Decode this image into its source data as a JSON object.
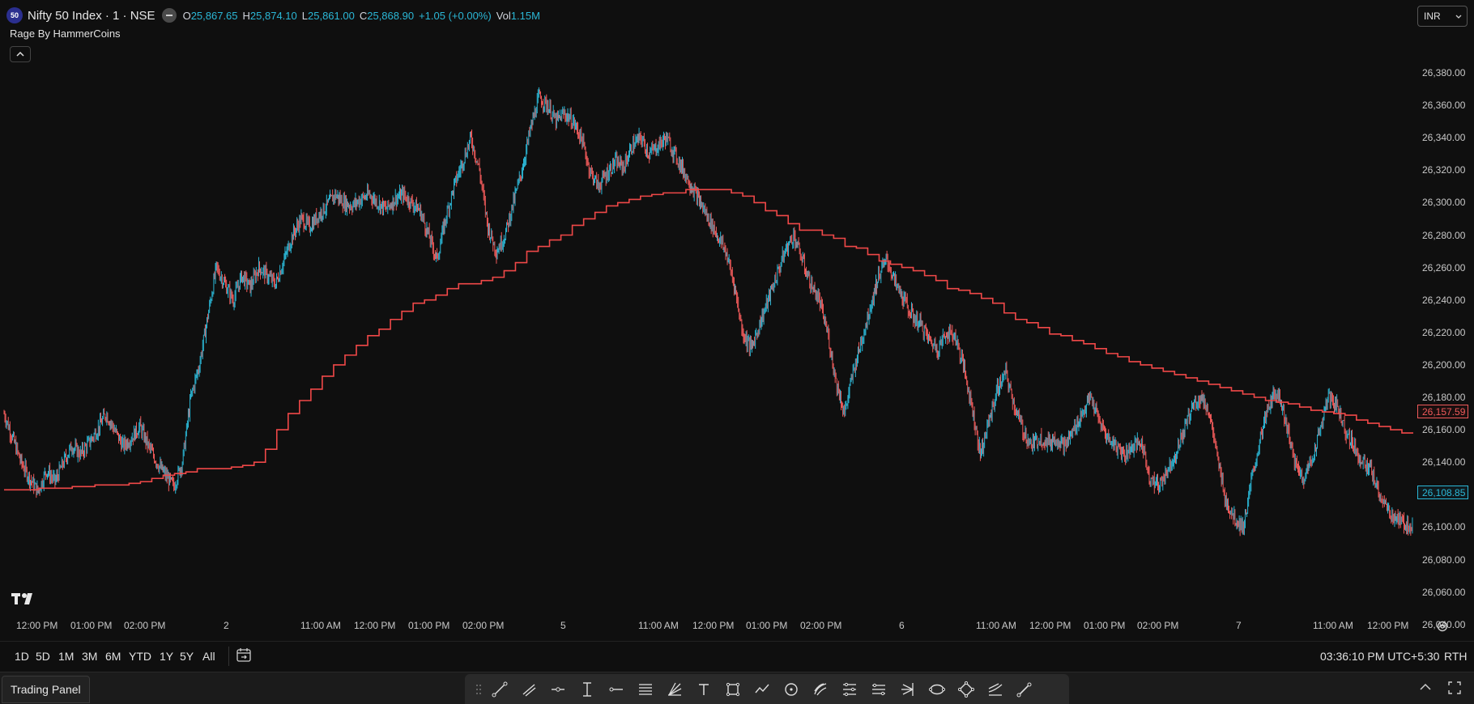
{
  "header": {
    "symbol_badge": "50",
    "title": "Nifty 50 Index · 1 · NSE",
    "ohlc": [
      {
        "k": "O",
        "v": "25,867.65"
      },
      {
        "k": "H",
        "v": "25,874.10"
      },
      {
        "k": "L",
        "v": "25,861.00"
      },
      {
        "k": "C",
        "v": "25,868.90"
      },
      {
        "k": "",
        "v": "+1.05 (+0.00%)"
      },
      {
        "k": "Vol",
        "v": "1.15M"
      }
    ],
    "indicator": "Rage By HammerCoins",
    "currency": "INR"
  },
  "price_axis": [
    "26,380.00",
    "26,360.00",
    "26,340.00",
    "26,320.00",
    "26,300.00",
    "26,280.00",
    "26,260.00",
    "26,240.00",
    "26,220.00",
    "26,200.00",
    "26,180.00",
    "26,160.00",
    "26,140.00",
    "26,120.00",
    "26,100.00",
    "26,080.00",
    "26,060.00",
    "26,040.00"
  ],
  "price_tags": {
    "indicator_value": "26,157.59",
    "last_price": "26,108.85"
  },
  "time_axis": [
    "12:00 PM",
    "01:00 PM",
    "02:00 PM",
    "2",
    "11:00 AM",
    "12:00 PM",
    "01:00 PM",
    "02:00 PM",
    "5",
    "11:00 AM",
    "12:00 PM",
    "01:00 PM",
    "02:00 PM",
    "6",
    "11:00 AM",
    "12:00 PM",
    "01:00 PM",
    "02:00 PM",
    "7",
    "11:00 AM",
    "12:00 PM"
  ],
  "range_bar": {
    "ranges": [
      "1D",
      "5D",
      "1M",
      "3M",
      "6M",
      "YTD",
      "1Y",
      "5Y",
      "All"
    ],
    "clock": "03:36:10 PM UTC+5:30",
    "session": "RTH"
  },
  "bottom_bar": {
    "trading_panel": "Trading Panel"
  },
  "chart_data": {
    "type": "line",
    "ylim": [
      26030,
      26390
    ],
    "series": [
      {
        "values": [
          26170,
          26155,
          26140,
          26130,
          26122,
          26135,
          26128,
          26140,
          26150,
          26145,
          26152,
          26160,
          26170,
          26160,
          26150,
          26155,
          26162,
          26150,
          26140,
          26132,
          26125,
          26140,
          26180,
          26200,
          26230,
          26260,
          26250,
          26240,
          26255,
          26248,
          26260,
          26255,
          26250,
          26265,
          26280,
          26290,
          26285,
          26292,
          26298,
          26305,
          26300,
          26298,
          26302,
          26305,
          26300,
          26296,
          26302,
          26305,
          26300,
          26295,
          26280,
          26265,
          26290,
          26310,
          26325,
          26340,
          26320,
          26285,
          26270,
          26280,
          26300,
          26320,
          26345,
          26365,
          26360,
          26350,
          26355,
          26350,
          26340,
          26320,
          26310,
          26318,
          26325,
          26322,
          26335,
          26340,
          26330,
          26335,
          26340,
          26330,
          26320,
          26310,
          26300,
          26290,
          26280,
          26270,
          26250,
          26220,
          26210,
          26225,
          26240,
          26255,
          26270,
          26280,
          26265,
          26250,
          26240,
          26220,
          26190,
          26170,
          26195,
          26215,
          26235,
          26255,
          26265,
          26250,
          26240,
          26230,
          26225,
          26215,
          26210,
          26220,
          26218,
          26200,
          26175,
          26145,
          26165,
          26185,
          26195,
          26175,
          26160,
          26150,
          26155,
          26152,
          26155,
          26150,
          26160,
          26170,
          26180,
          26165,
          26155,
          26150,
          26145,
          26150,
          26152,
          26130,
          26125,
          26135,
          26145,
          26160,
          26175,
          26180,
          26170,
          26140,
          26115,
          26105,
          26100,
          26130,
          26155,
          26175,
          26185,
          26165,
          26140,
          26130,
          26140,
          26160,
          26180,
          26175,
          26160,
          26150,
          26140,
          26135,
          26120,
          26110,
          26105,
          26102,
          26100
        ]
      },
      {
        "values": [
          26123,
          26123,
          26123,
          26124,
          26124,
          26124,
          26125,
          26125,
          26126,
          26126,
          26126,
          26127,
          26128,
          26130,
          26132,
          26133,
          26134,
          26136,
          26136,
          26136,
          26137,
          26138,
          26140,
          26148,
          26160,
          26170,
          26178,
          26185,
          26193,
          26200,
          26206,
          26212,
          26218,
          26222,
          26228,
          26233,
          26238,
          26240,
          26243,
          26247,
          26250,
          26250,
          26252,
          26254,
          26258,
          26263,
          26270,
          26273,
          26277,
          26280,
          26286,
          26290,
          26294,
          26298,
          26300,
          26302,
          26304,
          26305,
          26306,
          26306,
          26308,
          26308,
          26308,
          26308,
          26306,
          26304,
          26300,
          26295,
          26292,
          26287,
          26283,
          26283,
          26280,
          26278,
          26273,
          26272,
          26268,
          26264,
          26262,
          26260,
          26258,
          26255,
          26252,
          26247,
          26246,
          26244,
          26241,
          26238,
          26232,
          26228,
          26226,
          26223,
          26219,
          26218,
          26215,
          26213,
          26210,
          26207,
          26205,
          26202,
          26200,
          26198,
          26196,
          26194,
          26192,
          26190,
          26188,
          26186,
          26184,
          26182,
          26180,
          26178,
          26177,
          26176,
          26174,
          26172,
          26171,
          26170,
          26169,
          26166,
          26164,
          26162,
          26160,
          26158
        ]
      }
    ]
  }
}
